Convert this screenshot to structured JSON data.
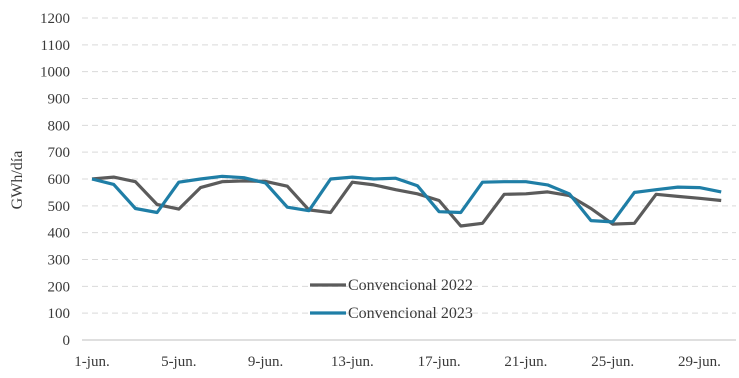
{
  "chart_data": {
    "type": "line",
    "title": "",
    "xlabel": "",
    "ylabel": "GWh/día",
    "ylim": [
      0,
      1200
    ],
    "yticks": [
      0,
      100,
      200,
      300,
      400,
      500,
      600,
      700,
      800,
      900,
      1000,
      1100,
      1200
    ],
    "grid": "horizontal-dashed",
    "legend_position": "bottom-center",
    "x": [
      1,
      2,
      3,
      4,
      5,
      6,
      7,
      8,
      9,
      10,
      11,
      12,
      13,
      14,
      15,
      16,
      17,
      18,
      19,
      20,
      21,
      22,
      23,
      24,
      25,
      26,
      27,
      28,
      29,
      30
    ],
    "xtick_labels": [
      {
        "day": 1,
        "label": "1-jun."
      },
      {
        "day": 5,
        "label": "5-jun."
      },
      {
        "day": 9,
        "label": "9-jun."
      },
      {
        "day": 13,
        "label": "13-jun."
      },
      {
        "day": 17,
        "label": "17-jun."
      },
      {
        "day": 21,
        "label": "21-jun."
      },
      {
        "day": 25,
        "label": "25-jun."
      },
      {
        "day": 29,
        "label": "29-jun."
      }
    ],
    "series": [
      {
        "name": "Convencional 2022",
        "color": "#5b5b5b",
        "values": [
          600,
          607,
          590,
          505,
          488,
          568,
          590,
          593,
          591,
          573,
          485,
          475,
          588,
          578,
          560,
          545,
          520,
          425,
          435,
          543,
          545,
          552,
          538,
          490,
          432,
          435,
          543,
          535,
          528,
          520
        ]
      },
      {
        "name": "Convencional 2023",
        "color": "#1f7ea6",
        "values": [
          600,
          580,
          490,
          475,
          588,
          600,
          610,
          605,
          585,
          495,
          482,
          600,
          607,
          600,
          603,
          575,
          478,
          475,
          588,
          590,
          590,
          578,
          545,
          445,
          440,
          550,
          560,
          570,
          568,
          552
        ]
      }
    ]
  }
}
